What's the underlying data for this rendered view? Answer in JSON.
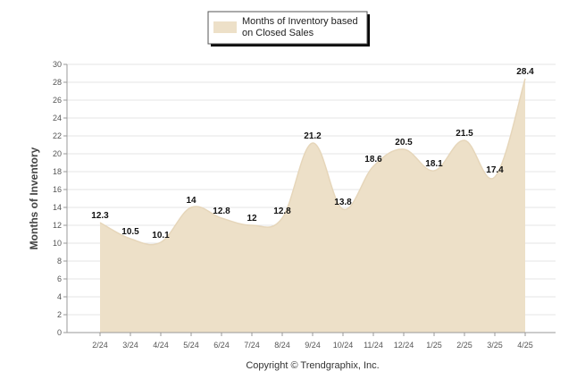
{
  "chart_data": {
    "type": "area",
    "categories": [
      "2/24",
      "3/24",
      "4/24",
      "5/24",
      "6/24",
      "7/24",
      "8/24",
      "9/24",
      "10/24",
      "11/24",
      "12/24",
      "1/25",
      "2/25",
      "3/25",
      "4/25"
    ],
    "series": [
      {
        "name": "Months of Inventory based on Closed Sales",
        "values": [
          12.3,
          10.5,
          10.1,
          14,
          12.8,
          12,
          12.8,
          21.2,
          13.8,
          18.6,
          20.5,
          18.1,
          21.5,
          17.4,
          28.4
        ],
        "labels": [
          "12.3",
          "10.5",
          "10.1",
          "14",
          "12.8",
          "12",
          "12.8",
          "21.2",
          "13.8",
          "18.6",
          "20.5",
          "18.1",
          "21.5",
          "17.4",
          "28.4"
        ]
      }
    ],
    "ylabel": "Months of Inventory",
    "xlabel": "",
    "ylim": [
      0,
      30
    ],
    "yticks": [
      0,
      2,
      4,
      6,
      8,
      10,
      12,
      14,
      16,
      18,
      20,
      22,
      24,
      26,
      28,
      30
    ],
    "legend": {
      "line1": "Months of Inventory based",
      "line2": "on Closed Sales",
      "placement": "top-center"
    },
    "grid": true,
    "colors": {
      "fill": "#ede0c8",
      "stroke": "#e6d6ba",
      "grid": "#e6e6e6"
    }
  },
  "footer": {
    "copyright": "Copyright © Trendgraphix, Inc."
  }
}
